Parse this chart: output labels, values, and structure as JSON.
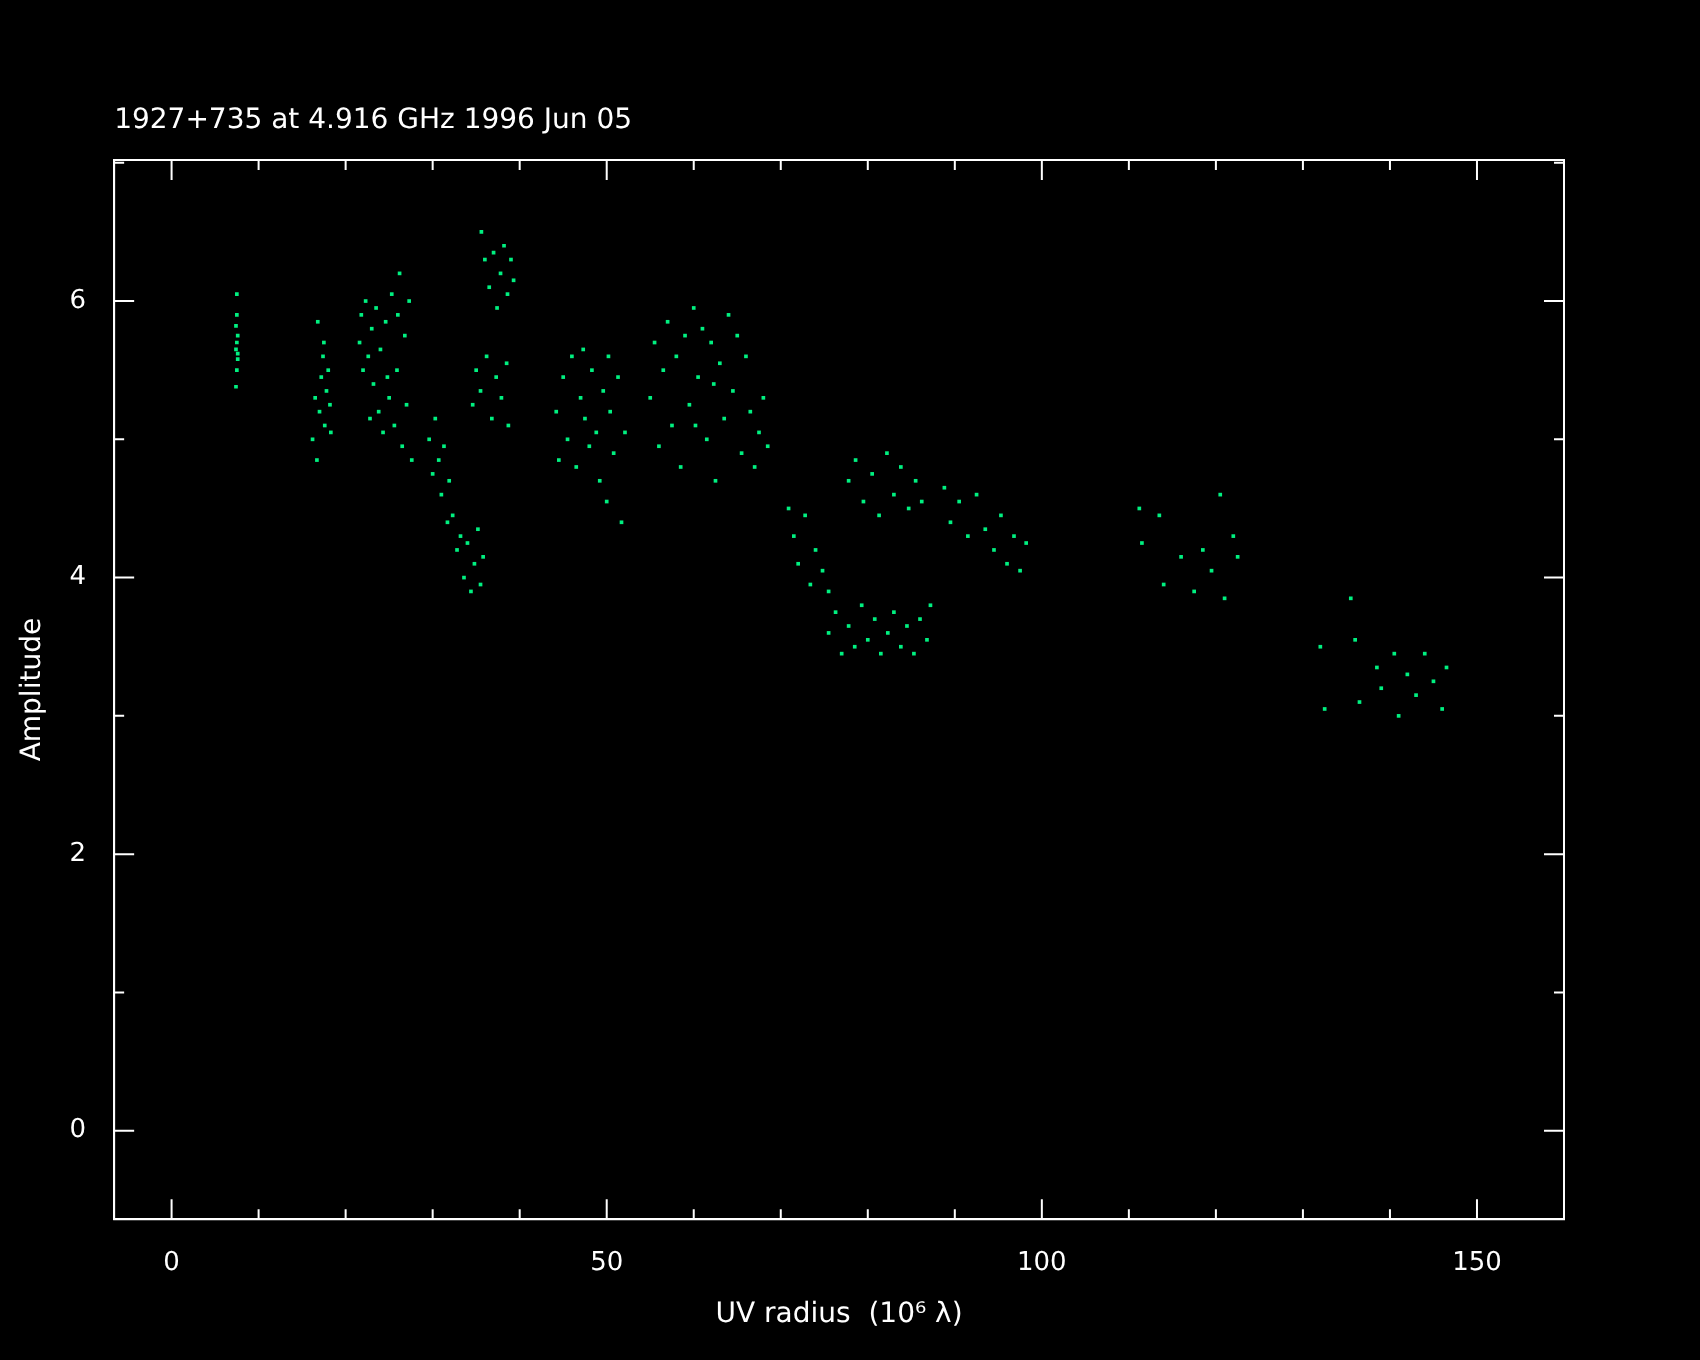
{
  "chart_data": {
    "type": "scatter",
    "title": "1927+735 at 4.916 GHz 1996 Jun 05",
    "xlabel": "UV radius  (10⁶ λ)",
    "ylabel": "Amplitude",
    "xlim": [
      -6.6,
      160
    ],
    "xticks": [
      0,
      {
        "value": 10,
        "label": null
      },
      {
        "value": 20,
        "label": null
      },
      {
        "value": 30,
        "label": null
      },
      {
        "value": 40,
        "label": null
      },
      50,
      {
        "value": 60,
        "label": null
      },
      {
        "value": 70,
        "label": null
      },
      {
        "value": 80,
        "label": null
      },
      {
        "value": 90,
        "label": null
      },
      100,
      {
        "value": 110,
        "label": null
      },
      {
        "value": 120,
        "label": null
      },
      {
        "value": 130,
        "label": null
      },
      {
        "value": 140,
        "label": null
      },
      150
    ],
    "ylim": [
      -0.64,
      7.02
    ],
    "yticks": [
      0,
      {
        "value": 1,
        "label": null
      },
      2,
      {
        "value": 3,
        "label": null
      },
      4,
      {
        "value": 5,
        "label": null
      },
      6,
      {
        "value": 7,
        "label": null
      }
    ],
    "grid": false,
    "legend": false,
    "marker": "square",
    "series": [
      {
        "color": "#00f080",
        "x": [
          7.4,
          7.5,
          7.6,
          7.4,
          7.5,
          7.6,
          7.4,
          7.5,
          7.5,
          7.6,
          16.2,
          16.5,
          16.8,
          17.0,
          17.2,
          17.4,
          17.6,
          17.8,
          18.0,
          18.2,
          16.7,
          17.5,
          18.3,
          21.6,
          21.8,
          22.0,
          22.3,
          22.6,
          23.0,
          23.2,
          23.5,
          23.8,
          24.0,
          24.3,
          24.6,
          25.0,
          25.3,
          25.6,
          25.9,
          26.2,
          26.5,
          26.8,
          27.0,
          27.3,
          27.6,
          24.8,
          22.8,
          26.0,
          29.6,
          30.0,
          30.3,
          30.7,
          31.0,
          31.3,
          31.7,
          31.9,
          32.3,
          32.8,
          33.2,
          33.6,
          34.0,
          34.4,
          34.8,
          35.2,
          35.5,
          35.8,
          35.6,
          36.0,
          36.5,
          37.0,
          37.4,
          37.8,
          38.2,
          38.6,
          39.0,
          39.3,
          34.6,
          35.0,
          35.5,
          36.2,
          36.8,
          37.3,
          37.9,
          38.5,
          38.7,
          44.2,
          44.5,
          45.0,
          45.5,
          46.0,
          46.5,
          47.0,
          47.5,
          48.0,
          48.3,
          48.8,
          49.2,
          49.6,
          50.0,
          50.4,
          50.8,
          51.3,
          51.7,
          52.1,
          47.3,
          50.2,
          55.0,
          55.5,
          56.0,
          56.5,
          57.0,
          57.5,
          58.0,
          58.5,
          59.0,
          59.5,
          60.0,
          60.5,
          61.0,
          61.5,
          62.0,
          62.5,
          63.0,
          63.5,
          64.0,
          64.5,
          65.0,
          65.5,
          66.0,
          66.5,
          67.0,
          67.5,
          68.0,
          68.5,
          60.2,
          62.3,
          70.9,
          71.5,
          72.0,
          72.8,
          73.4,
          74.0,
          74.8,
          75.5,
          75.5,
          76.3,
          77.0,
          77.8,
          78.5,
          79.3,
          80.0,
          80.8,
          81.5,
          82.3,
          83.0,
          83.8,
          84.5,
          85.3,
          86.0,
          86.8,
          87.2,
          77.8,
          78.6,
          79.5,
          80.5,
          81.3,
          82.2,
          83.0,
          83.8,
          84.7,
          85.5,
          86.2,
          88.8,
          89.5,
          90.5,
          91.5,
          92.5,
          93.5,
          94.5,
          95.3,
          96.0,
          96.8,
          97.5,
          98.2,
          111.2,
          111.5,
          113.5,
          114.0,
          116.0,
          117.5,
          118.5,
          119.5,
          120.5,
          121.0,
          122.0,
          122.5,
          132.0,
          132.5,
          135.5,
          136.0,
          136.5,
          138.5,
          139.0,
          140.5,
          141.0,
          142.0,
          143.0,
          144.0,
          145.0,
          146.0,
          146.5
        ],
        "values": [
          5.38,
          5.5,
          5.58,
          5.65,
          5.7,
          5.75,
          5.82,
          5.9,
          6.05,
          5.62,
          5.0,
          5.3,
          5.85,
          5.2,
          5.45,
          5.6,
          5.1,
          5.35,
          5.5,
          5.25,
          4.85,
          5.7,
          5.05,
          5.7,
          5.9,
          5.5,
          6.0,
          5.6,
          5.8,
          5.4,
          5.95,
          5.2,
          5.65,
          5.05,
          5.85,
          5.3,
          6.05,
          5.1,
          5.5,
          6.2,
          4.95,
          5.75,
          5.25,
          6.0,
          4.85,
          5.45,
          5.15,
          5.9,
          5.0,
          4.75,
          5.15,
          4.85,
          4.6,
          4.95,
          4.4,
          4.7,
          4.45,
          4.2,
          4.3,
          4.0,
          4.25,
          3.9,
          4.1,
          4.35,
          3.95,
          4.15,
          6.5,
          6.3,
          6.1,
          6.35,
          5.95,
          6.2,
          6.4,
          6.05,
          6.3,
          6.15,
          5.25,
          5.5,
          5.35,
          5.6,
          5.15,
          5.45,
          5.3,
          5.55,
          5.1,
          5.2,
          4.85,
          5.45,
          5.0,
          5.6,
          4.8,
          5.3,
          5.15,
          4.95,
          5.5,
          5.05,
          4.7,
          5.35,
          4.55,
          5.2,
          4.9,
          5.45,
          4.4,
          5.05,
          5.65,
          5.6,
          5.3,
          5.7,
          4.95,
          5.5,
          5.85,
          5.1,
          5.6,
          4.8,
          5.75,
          5.25,
          5.95,
          5.45,
          5.8,
          5.0,
          5.7,
          4.7,
          5.55,
          5.15,
          5.9,
          5.35,
          5.75,
          4.9,
          5.6,
          5.2,
          4.8,
          5.05,
          5.3,
          4.95,
          5.1,
          5.4,
          4.5,
          4.3,
          4.1,
          4.45,
          3.95,
          4.2,
          4.05,
          3.9,
          3.6,
          3.75,
          3.45,
          3.65,
          3.5,
          3.8,
          3.55,
          3.7,
          3.45,
          3.6,
          3.75,
          3.5,
          3.65,
          3.45,
          3.7,
          3.55,
          3.8,
          4.7,
          4.85,
          4.55,
          4.75,
          4.45,
          4.9,
          4.6,
          4.8,
          4.5,
          4.7,
          4.55,
          4.65,
          4.4,
          4.55,
          4.3,
          4.6,
          4.35,
          4.2,
          4.45,
          4.1,
          4.3,
          4.05,
          4.25,
          4.5,
          4.25,
          4.45,
          3.95,
          4.15,
          3.9,
          4.2,
          4.05,
          4.6,
          3.85,
          4.3,
          4.15,
          3.5,
          3.05,
          3.85,
          3.55,
          3.1,
          3.35,
          3.2,
          3.45,
          3.0,
          3.3,
          3.15,
          3.45,
          3.25,
          3.05,
          3.35
        ]
      }
    ]
  }
}
